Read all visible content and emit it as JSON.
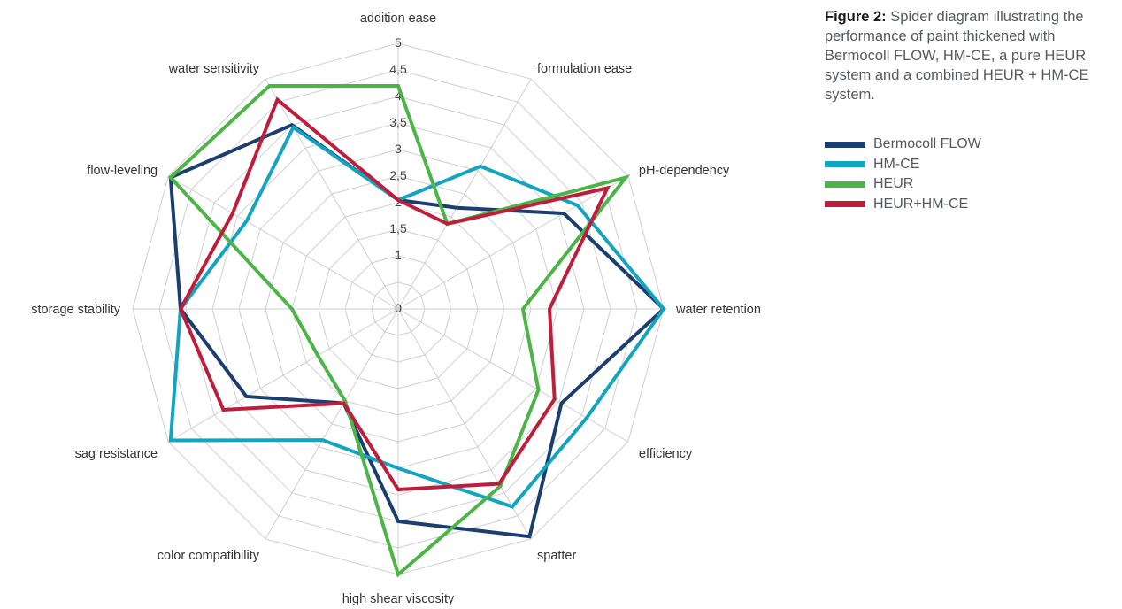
{
  "caption": {
    "label": "Figure 2:",
    "text": "Spider diagram illustrating the performance of paint thickened with Bermocoll FLOW, HM-CE, a pure HEUR system and a combined HEUR + HM-CE system."
  },
  "chart_data": {
    "type": "radar",
    "title": "",
    "axes": [
      "addition ease",
      "formulation ease",
      "pH-dependency",
      "water retention",
      "efficiency",
      "spatter",
      "high shear viscosity",
      "color compatibility",
      "sag resistance",
      "storage stability",
      "flow-leveling",
      "water sensitivity"
    ],
    "range": [
      0,
      5
    ],
    "tick_values": [
      0,
      1,
      1.5,
      2,
      2.5,
      3,
      3.5,
      4,
      4.5,
      5
    ],
    "tick_labels": [
      "0",
      "1",
      "1,5",
      "2",
      "2,5",
      "3",
      "3,5",
      "4",
      "4,5",
      "5"
    ],
    "grid": true,
    "legend_position": "right",
    "series": [
      {
        "name": "Bermocoll FLOW",
        "color": "#1a3e70",
        "values": [
          2.05,
          2.2,
          3.6,
          5.0,
          3.55,
          4.95,
          4.0,
          2.05,
          3.3,
          4.1,
          4.95,
          4.0
        ]
      },
      {
        "name": "HM-CE",
        "color": "#13a4bf",
        "values": [
          2.05,
          3.1,
          3.9,
          5.0,
          4.1,
          4.3,
          3.0,
          2.85,
          4.95,
          4.1,
          3.3,
          3.95
        ]
      },
      {
        "name": "HEUR",
        "color": "#4db548",
        "values": [
          4.2,
          1.85,
          4.95,
          2.35,
          3.05,
          3.85,
          5.0,
          2.0,
          1.75,
          2.0,
          4.95,
          4.85
        ]
      },
      {
        "name": "HEUR+HM-CE",
        "color": "#be1e3c",
        "values": [
          2.05,
          1.85,
          4.55,
          2.85,
          3.4,
          3.8,
          3.4,
          2.05,
          3.8,
          4.1,
          3.6,
          4.55
        ]
      }
    ]
  }
}
